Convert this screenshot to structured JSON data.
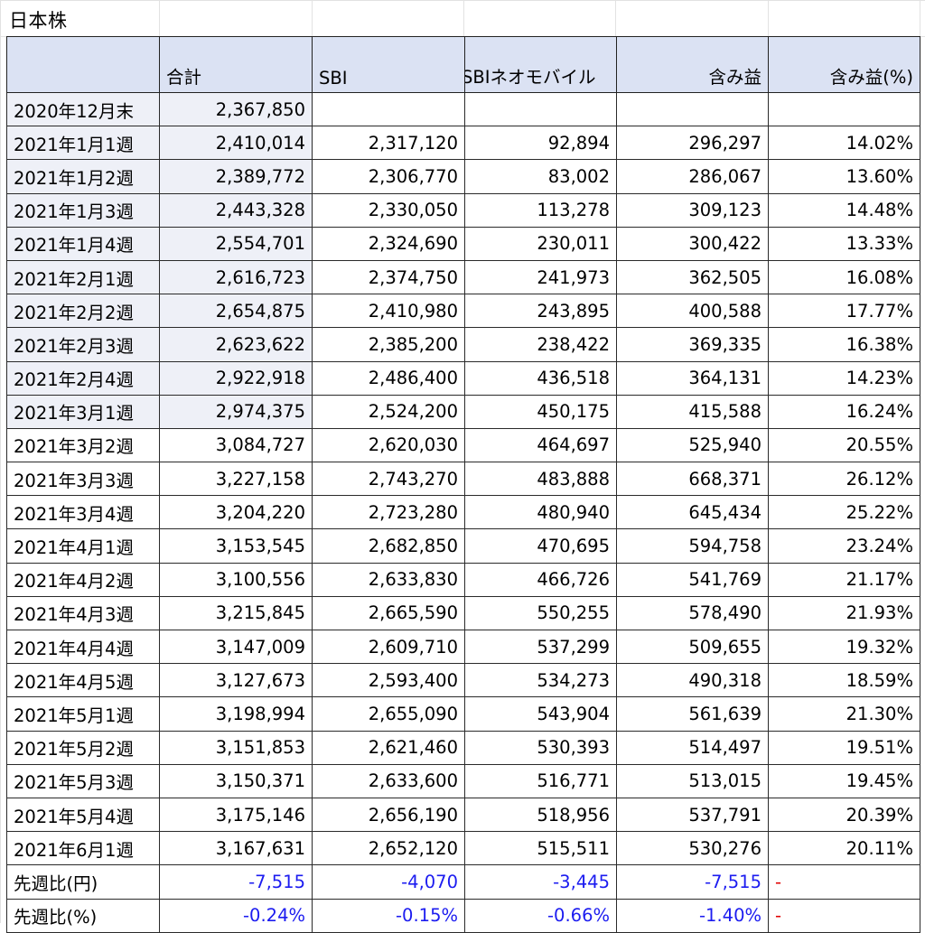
{
  "sheet": {
    "title": "日本株"
  },
  "table": {
    "headers": [
      "",
      "合計",
      "SBI",
      "SBIネオモバイル",
      "含み益",
      "含み益(%)"
    ],
    "rows": [
      {
        "label": "2020年12月末",
        "total": "2,367,850",
        "sbi": "",
        "neomobile": "",
        "gain": "",
        "gain_pct": ""
      },
      {
        "label": "2021年1月1週",
        "total": "2,410,014",
        "sbi": "2,317,120",
        "neomobile": "92,894",
        "gain": "296,297",
        "gain_pct": "14.02%"
      },
      {
        "label": "2021年1月2週",
        "total": "2,389,772",
        "sbi": "2,306,770",
        "neomobile": "83,002",
        "gain": "286,067",
        "gain_pct": "13.60%"
      },
      {
        "label": "2021年1月3週",
        "total": "2,443,328",
        "sbi": "2,330,050",
        "neomobile": "113,278",
        "gain": "309,123",
        "gain_pct": "14.48%"
      },
      {
        "label": "2021年1月4週",
        "total": "2,554,701",
        "sbi": "2,324,690",
        "neomobile": "230,011",
        "gain": "300,422",
        "gain_pct": "13.33%"
      },
      {
        "label": "2021年2月1週",
        "total": "2,616,723",
        "sbi": "2,374,750",
        "neomobile": "241,973",
        "gain": "362,505",
        "gain_pct": "16.08%"
      },
      {
        "label": "2021年2月2週",
        "total": "2,654,875",
        "sbi": "2,410,980",
        "neomobile": "243,895",
        "gain": "400,588",
        "gain_pct": "17.77%"
      },
      {
        "label": "2021年2月3週",
        "total": "2,623,622",
        "sbi": "2,385,200",
        "neomobile": "238,422",
        "gain": "369,335",
        "gain_pct": "16.38%"
      },
      {
        "label": "2021年2月4週",
        "total": "2,922,918",
        "sbi": "2,486,400",
        "neomobile": "436,518",
        "gain": "364,131",
        "gain_pct": "14.23%"
      },
      {
        "label": "2021年3月1週",
        "total": "2,974,375",
        "sbi": "2,524,200",
        "neomobile": "450,175",
        "gain": "415,588",
        "gain_pct": "16.24%"
      },
      {
        "label": "2021年3月2週",
        "total": "3,084,727",
        "sbi": "2,620,030",
        "neomobile": "464,697",
        "gain": "525,940",
        "gain_pct": "20.55%"
      },
      {
        "label": "2021年3月3週",
        "total": "3,227,158",
        "sbi": "2,743,270",
        "neomobile": "483,888",
        "gain": "668,371",
        "gain_pct": "26.12%"
      },
      {
        "label": "2021年3月4週",
        "total": "3,204,220",
        "sbi": "2,723,280",
        "neomobile": "480,940",
        "gain": "645,434",
        "gain_pct": "25.22%"
      },
      {
        "label": "2021年4月1週",
        "total": "3,153,545",
        "sbi": "2,682,850",
        "neomobile": "470,695",
        "gain": "594,758",
        "gain_pct": "23.24%"
      },
      {
        "label": "2021年4月2週",
        "total": "3,100,556",
        "sbi": "2,633,830",
        "neomobile": "466,726",
        "gain": "541,769",
        "gain_pct": "21.17%"
      },
      {
        "label": "2021年4月3週",
        "total": "3,215,845",
        "sbi": "2,665,590",
        "neomobile": "550,255",
        "gain": "578,490",
        "gain_pct": "21.93%"
      },
      {
        "label": "2021年4月4週",
        "total": "3,147,009",
        "sbi": "2,609,710",
        "neomobile": "537,299",
        "gain": "509,655",
        "gain_pct": "19.32%"
      },
      {
        "label": "2021年4月5週",
        "total": "3,127,673",
        "sbi": "2,593,400",
        "neomobile": "534,273",
        "gain": "490,318",
        "gain_pct": "18.59%"
      },
      {
        "label": "2021年5月1週",
        "total": "3,198,994",
        "sbi": "2,655,090",
        "neomobile": "543,904",
        "gain": "561,639",
        "gain_pct": "21.30%"
      },
      {
        "label": "2021年5月2週",
        "total": "3,151,853",
        "sbi": "2,621,460",
        "neomobile": "530,393",
        "gain": "514,497",
        "gain_pct": "19.51%"
      },
      {
        "label": "2021年5月3週",
        "total": "3,150,371",
        "sbi": "2,633,600",
        "neomobile": "516,771",
        "gain": "513,015",
        "gain_pct": "19.45%"
      },
      {
        "label": "2021年5月4週",
        "total": "3,175,146",
        "sbi": "2,656,190",
        "neomobile": "518,956",
        "gain": "537,791",
        "gain_pct": "20.39%"
      },
      {
        "label": "2021年6月1週",
        "total": "3,167,631",
        "sbi": "2,652,120",
        "neomobile": "515,511",
        "gain": "530,276",
        "gain_pct": "20.11%"
      }
    ],
    "diff_rows": [
      {
        "label": "先週比(円)",
        "total": "-7,515",
        "sbi": "-4,070",
        "neomobile": "-3,445",
        "gain": "-7,515",
        "gain_pct": "-"
      },
      {
        "label": "先週比(%)",
        "total": "-0.24%",
        "sbi": "-0.15%",
        "neomobile": "-0.66%",
        "gain": "-1.40%",
        "gain_pct": "-"
      }
    ],
    "shaded_rows": 10
  },
  "colors": {
    "header_bg": "#dbe2f3",
    "shade_bg": "#eef0f7",
    "diff_value": "#1c1cf0",
    "dash_mark": "#e00000",
    "border": "#2a2a2a"
  }
}
